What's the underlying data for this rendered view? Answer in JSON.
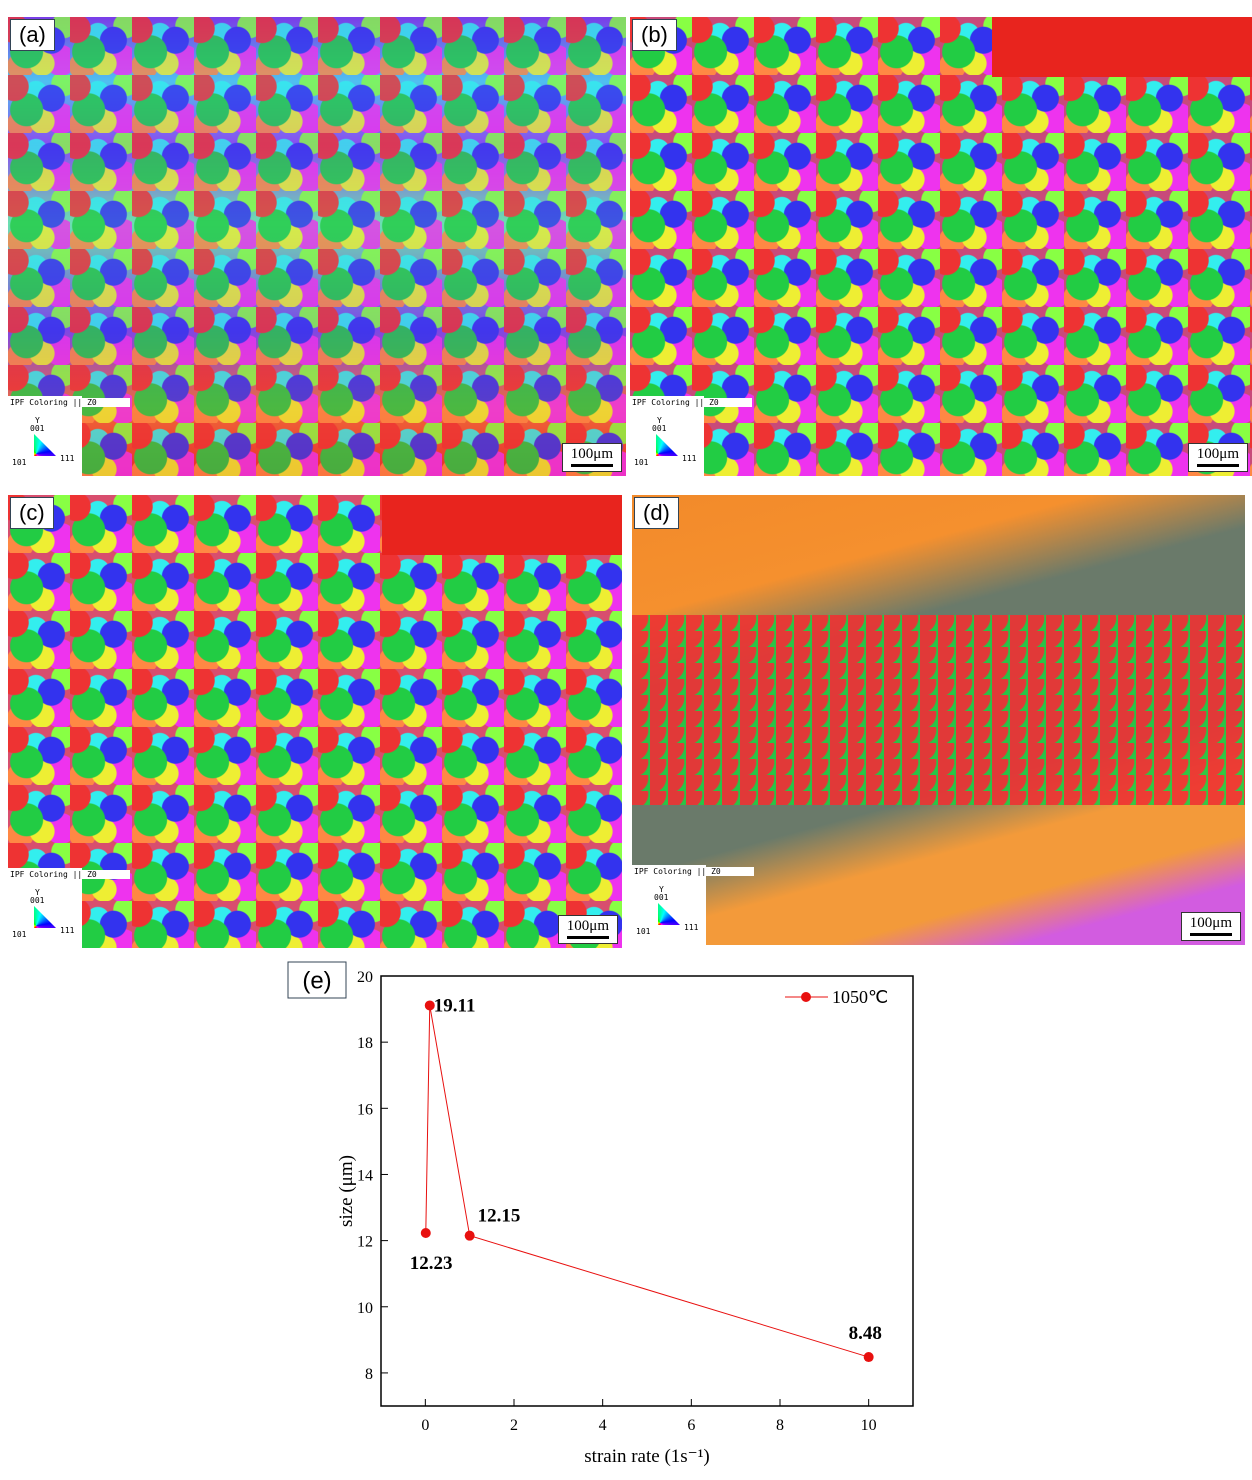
{
  "panels": [
    {
      "label": "(a)",
      "legend_title": "IPF Coloring || Z0",
      "legend_axis": "Y",
      "legend_corners": [
        "001",
        "101",
        "111"
      ],
      "scale_bar": "100μm"
    },
    {
      "label": "(b)",
      "legend_title": "IPF Coloring || Z0",
      "legend_axis": "Y",
      "legend_corners": [
        "001",
        "101",
        "111"
      ],
      "scale_bar": "100μm"
    },
    {
      "label": "(c)",
      "legend_title": "IPF Coloring || Z0",
      "legend_axis": "Y",
      "legend_corners": [
        "001",
        "101",
        "111"
      ],
      "scale_bar": "100μm"
    },
    {
      "label": "(d)",
      "legend_title": "IPF Coloring || Z0",
      "legend_axis": "Y",
      "legend_corners": [
        "001",
        "101",
        "111"
      ],
      "scale_bar": "100μm"
    }
  ],
  "chart_data": {
    "type": "line",
    "panel_label": "(e)",
    "x_label": "strain rate (1s⁻¹)",
    "y_label": "size (μm)",
    "x": [
      0.01,
      0.1,
      1,
      10
    ],
    "series": [
      {
        "name": "1050℃",
        "color": "#e8100f",
        "values": [
          12.23,
          19.11,
          12.15,
          8.48
        ]
      }
    ],
    "xlim": [
      -1,
      11
    ],
    "xticks": [
      0,
      2,
      4,
      6,
      8,
      10
    ],
    "ylim": [
      7,
      20
    ],
    "yticks": [
      8,
      10,
      12,
      14,
      16,
      18,
      20
    ],
    "legend": "upper right",
    "grid": false
  }
}
